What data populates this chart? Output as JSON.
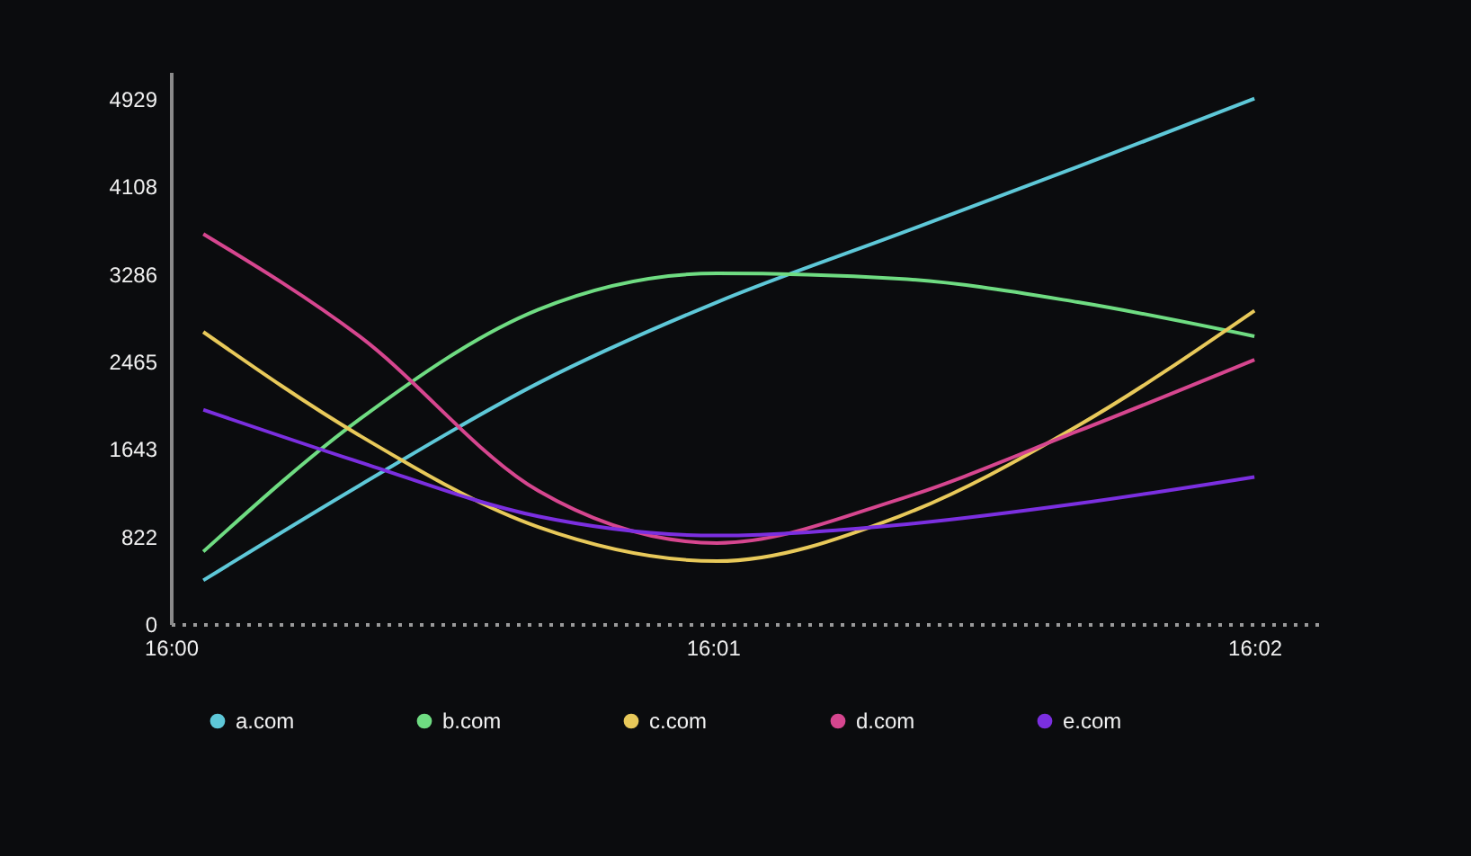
{
  "chart_data": {
    "type": "line",
    "x": [
      16.001,
      16.0058,
      16.0113,
      16.0168,
      16.0224,
      16.0279,
      16.03333
    ],
    "xlim": [
      16,
      16.0354
    ],
    "xticks": [
      {
        "value": 16,
        "label": "16:00"
      },
      {
        "value": 16.01667,
        "label": "16:01"
      },
      {
        "value": 16.03333,
        "label": "16:02"
      }
    ],
    "ylim": [
      0,
      5180
    ],
    "yticks": [
      0,
      822,
      1643,
      2465,
      3286,
      4108,
      4929
    ],
    "legend": "bottom",
    "series": [
      {
        "name": "a.com",
        "color": "#5ec8d8",
        "values": [
          410,
          1300,
          2260,
          3020,
          3660,
          4290,
          4930
        ]
      },
      {
        "name": "b.com",
        "color": "#6fdc82",
        "values": [
          680,
          1920,
          2950,
          3290,
          3240,
          3020,
          2700
        ]
      },
      {
        "name": "c.com",
        "color": "#e8c95a",
        "values": [
          2740,
          1770,
          910,
          590,
          1010,
          1860,
          2940
        ]
      },
      {
        "name": "d.com",
        "color": "#d6468f",
        "values": [
          3660,
          2700,
          1250,
          760,
          1170,
          1810,
          2480
        ]
      },
      {
        "name": "e.com",
        "color": "#7b2fe0",
        "values": [
          2010,
          1520,
          1010,
          830,
          930,
          1130,
          1380
        ]
      }
    ]
  }
}
